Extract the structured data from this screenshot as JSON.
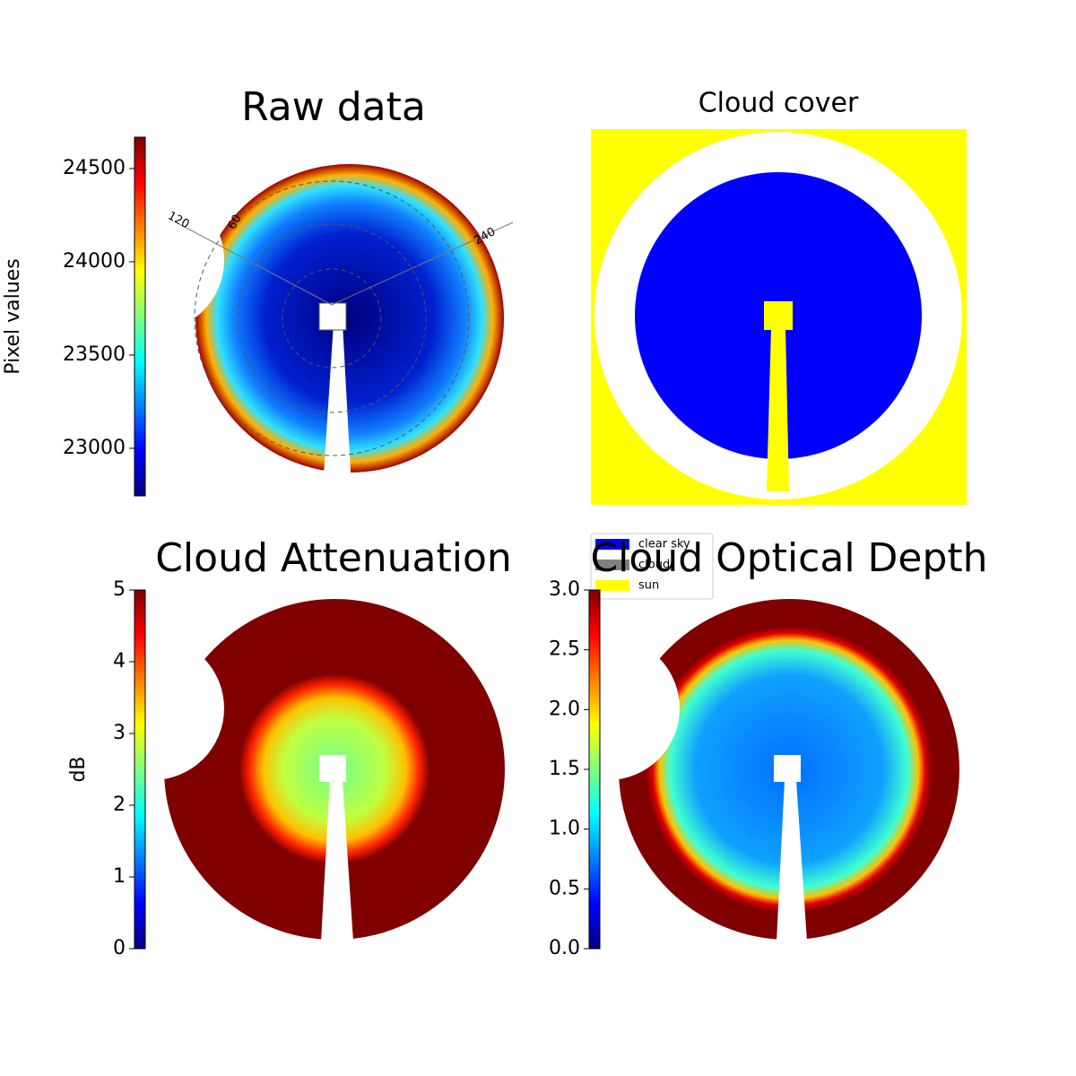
{
  "chart_data": [
    {
      "type": "image",
      "title": "Raw data",
      "colorbar_label": "Pixel values",
      "ylim": [
        22745,
        24668
      ],
      "yticks": [
        23000,
        23500,
        24000,
        24500
      ],
      "colormap": [
        "#00007f",
        "#0000ff",
        "#007fff",
        "#00ffff",
        "#7fff7f",
        "#ffff00",
        "#ff7f00",
        "#ff0000",
        "#7f0000"
      ],
      "annotations": [
        "120",
        "60",
        "240"
      ]
    },
    {
      "type": "image",
      "title": "Cloud cover",
      "legend": [
        {
          "label": "clear sky",
          "color": "#0000ff"
        },
        {
          "label": "cloud",
          "color": "#808080"
        },
        {
          "label": "sun",
          "color": "#ffff00"
        }
      ]
    },
    {
      "type": "image",
      "title": "Cloud Attenuation",
      "colorbar_label": "dB",
      "ylim": [
        0,
        5
      ],
      "yticks": [
        0,
        1,
        2,
        3,
        4,
        5
      ],
      "colormap": [
        "#00007f",
        "#0000ff",
        "#007fff",
        "#00ffff",
        "#7fff7f",
        "#ffff00",
        "#ff7f00",
        "#ff0000",
        "#7f0000"
      ]
    },
    {
      "type": "image",
      "title": "Cloud Optical Depth",
      "ylim": [
        0,
        3
      ],
      "yticks": [
        {
          "value": 0,
          "label": "0.0"
        },
        {
          "value": 0.5,
          "label": "0.5"
        },
        {
          "value": 1,
          "label": "1.0"
        },
        {
          "value": 1.5,
          "label": "1.5"
        },
        {
          "value": 2,
          "label": "2.0"
        },
        {
          "value": 2.5,
          "label": "2.5"
        },
        {
          "value": 3,
          "label": "3.0"
        }
      ],
      "colormap": [
        "#00007f",
        "#0000ff",
        "#007fff",
        "#00ffff",
        "#7fff7f",
        "#ffff00",
        "#ff7f00",
        "#ff0000",
        "#7f0000"
      ]
    }
  ]
}
